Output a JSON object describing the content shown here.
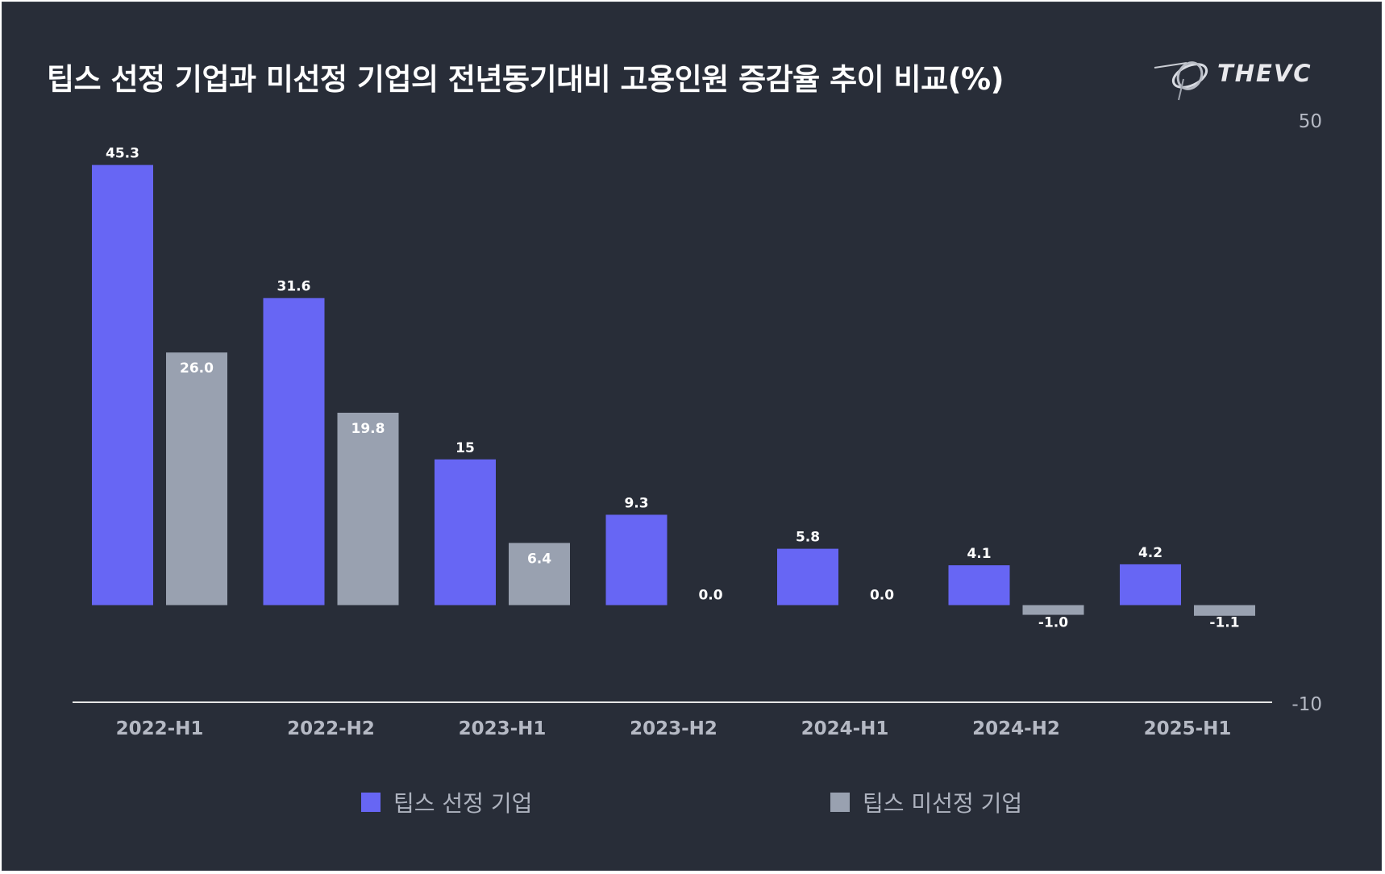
{
  "title": "팁스 선정 기업과 미선정 기업의 전년동기대비 고용인원 증감율 추이 비교(%)",
  "logo": {
    "text": "THEVC",
    "icon": "orbit-logo-icon"
  },
  "colors": {
    "background": "#282d38",
    "series_1": "#6766f4",
    "series_2": "#99a1b0",
    "axis": "#e6e6e6",
    "tick_text": "#b5b9c4",
    "data_label": "#ffffff"
  },
  "chart_data": {
    "type": "bar",
    "title": "팁스 선정 기업과 미선정 기업의 전년동기대비 고용인원 증감율 추이 비교(%)",
    "categories": [
      "2022-H1",
      "2022-H2",
      "2023-H1",
      "2023-H2",
      "2024-H1",
      "2024-H2",
      "2025-H1"
    ],
    "series": [
      {
        "name": "팁스 선정 기업",
        "values": [
          45.3,
          31.6,
          15,
          9.3,
          5.8,
          4.1,
          4.2
        ],
        "labels": [
          "45.3",
          "31.6",
          "15",
          "9.3",
          "5.8",
          "4.1",
          "4.2"
        ]
      },
      {
        "name": "팁스 미선정 기업",
        "values": [
          26.0,
          19.8,
          6.4,
          0.0,
          0.0,
          -1.0,
          -1.1
        ],
        "labels": [
          "26.0",
          "19.8",
          "6.4",
          "0.0",
          "0.0",
          "-1.0",
          "-1.1"
        ]
      }
    ],
    "ylim": [
      -10,
      50
    ],
    "y_ticks": [
      "50",
      "-10"
    ],
    "y_axis_side": "right",
    "xlabel": "",
    "ylabel": "",
    "grid": false,
    "legend_position": "bottom"
  }
}
